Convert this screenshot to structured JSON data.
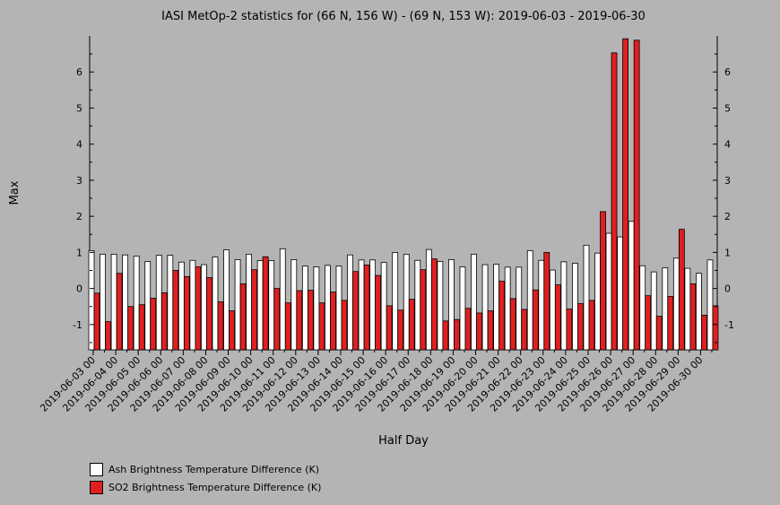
{
  "chart_data": {
    "type": "bar",
    "title": "IASI MetOp-2 statistics for (66 N, 156 W) - (69 N, 153 W): 2019-06-03 - 2019-06-30",
    "xlabel": "Half Day",
    "ylabel": "Max",
    "ylim": [
      -1.7,
      7.0
    ],
    "yticks": [
      -1,
      0,
      1,
      2,
      3,
      4,
      5,
      6
    ],
    "x": [
      "2019-06-03 00",
      "2019-06-03 12",
      "2019-06-04 00",
      "2019-06-04 12",
      "2019-06-05 00",
      "2019-06-05 12",
      "2019-06-06 00",
      "2019-06-06 12",
      "2019-06-07 00",
      "2019-06-07 12",
      "2019-06-08 00",
      "2019-06-08 12",
      "2019-06-09 00",
      "2019-06-09 12",
      "2019-06-10 00",
      "2019-06-10 12",
      "2019-06-11 00",
      "2019-06-11 12",
      "2019-06-12 00",
      "2019-06-12 12",
      "2019-06-13 00",
      "2019-06-13 12",
      "2019-06-14 00",
      "2019-06-14 12",
      "2019-06-15 00",
      "2019-06-15 12",
      "2019-06-16 00",
      "2019-06-16 12",
      "2019-06-17 00",
      "2019-06-17 12",
      "2019-06-18 00",
      "2019-06-18 12",
      "2019-06-19 00",
      "2019-06-19 12",
      "2019-06-20 00",
      "2019-06-20 12",
      "2019-06-21 00",
      "2019-06-21 12",
      "2019-06-22 00",
      "2019-06-22 12",
      "2019-06-23 00",
      "2019-06-23 12",
      "2019-06-24 00",
      "2019-06-24 12",
      "2019-06-25 00",
      "2019-06-25 12",
      "2019-06-26 00",
      "2019-06-26 12",
      "2019-06-27 00",
      "2019-06-27 12",
      "2019-06-28 00",
      "2019-06-28 12",
      "2019-06-29 00",
      "2019-06-29 12",
      "2019-06-30 00",
      "2019-06-30 12"
    ],
    "tick_labels": [
      "2019-06-03 00",
      "2019-06-04 00",
      "2019-06-05 00",
      "2019-06-06 00",
      "2019-06-07 00",
      "2019-06-08 00",
      "2019-06-09 00",
      "2019-06-10 00",
      "2019-06-11 00",
      "2019-06-12 00",
      "2019-06-13 00",
      "2019-06-14 00",
      "2019-06-15 00",
      "2019-06-16 00",
      "2019-06-17 00",
      "2019-06-18 00",
      "2019-06-19 00",
      "2019-06-20 00",
      "2019-06-21 00",
      "2019-06-22 00",
      "2019-06-23 00",
      "2019-06-24 00",
      "2019-06-25 00",
      "2019-06-26 00",
      "2019-06-27 00",
      "2019-06-28 00",
      "2019-06-29 00",
      "2019-06-30 00"
    ],
    "series": [
      {
        "name": "Ash Brightness Temperature Difference (K)",
        "color": "#ffffff",
        "values": [
          1.05,
          0.95,
          0.95,
          0.93,
          0.9,
          0.75,
          0.92,
          0.92,
          0.73,
          0.78,
          0.66,
          0.87,
          1.07,
          0.8,
          0.95,
          0.77,
          0.77,
          1.1,
          0.8,
          0.62,
          0.6,
          0.64,
          0.62,
          0.93,
          0.79,
          0.79,
          0.72,
          1.0,
          0.95,
          0.78,
          1.08,
          0.75,
          0.8,
          0.6,
          0.95,
          0.66,
          0.67,
          0.59,
          0.59,
          1.05,
          0.78,
          0.51,
          0.74,
          0.7,
          1.2,
          0.98,
          1.53,
          1.43,
          1.86,
          0.63,
          0.46,
          0.57,
          0.84,
          0.56,
          0.42,
          0.79
        ]
      },
      {
        "name": "SO2 Brightness Temperature Difference (K)",
        "color": "#e02020",
        "values": [
          -0.13,
          -0.92,
          0.42,
          -0.5,
          -0.45,
          -0.27,
          -0.12,
          0.5,
          0.33,
          0.6,
          0.3,
          -0.37,
          -0.62,
          0.13,
          0.52,
          0.88,
          0.0,
          -0.4,
          -0.06,
          -0.05,
          -0.4,
          -0.1,
          -0.33,
          0.47,
          0.65,
          0.36,
          -0.48,
          -0.6,
          -0.3,
          0.52,
          0.82,
          -0.9,
          -0.86,
          -0.55,
          -0.68,
          -0.62,
          0.2,
          -0.28,
          -0.58,
          -0.04,
          1.0,
          0.1,
          -0.57,
          -0.42,
          -0.33,
          2.13,
          6.53,
          6.92,
          6.88,
          -0.2,
          -0.77,
          -0.22,
          1.64,
          0.13,
          -0.74,
          -0.48
        ]
      }
    ],
    "grid": false,
    "legend_position": "bottom-left"
  }
}
